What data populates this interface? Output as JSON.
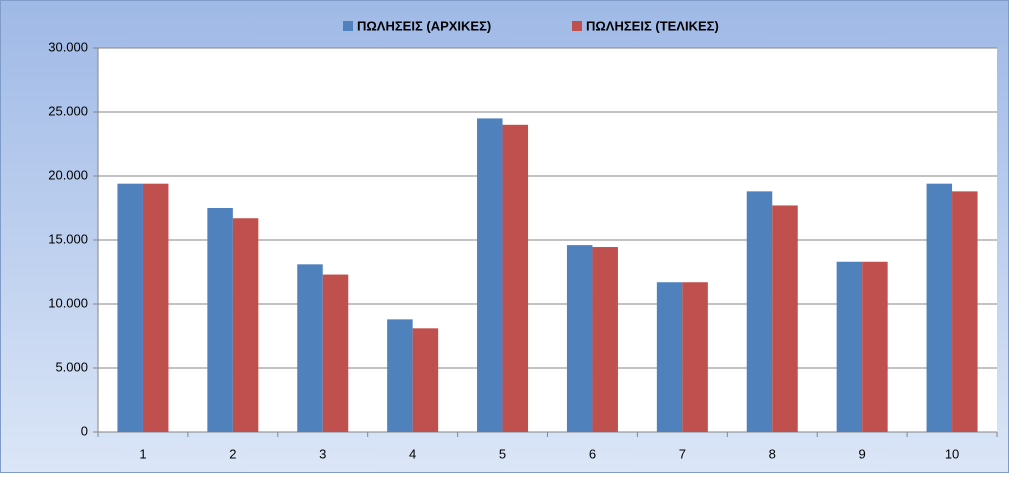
{
  "chart_data": {
    "type": "bar",
    "categories": [
      "1",
      "2",
      "3",
      "4",
      "5",
      "6",
      "7",
      "8",
      "9",
      "10"
    ],
    "series": [
      {
        "name": "ΠΩΛΗΣΕΙΣ (ΑΡΧΙΚΕΣ)",
        "color": "#4f81bd",
        "values": [
          19400,
          17500,
          13100,
          8800,
          24500,
          14600,
          11700,
          18800,
          13300,
          19400
        ]
      },
      {
        "name": "ΠΩΛΗΣΕΙΣ (ΤΕΛΙΚΕΣ)",
        "color": "#c0504d",
        "values": [
          19400,
          16700,
          12300,
          8100,
          24000,
          14450,
          11700,
          17700,
          13300,
          18800
        ]
      }
    ],
    "ylim": [
      0,
      30000
    ],
    "yticks": [
      0,
      {
        "value": 5000,
        "label": "5.000"
      },
      {
        "value": 10000,
        "label": "10.000"
      },
      {
        "value": 15000,
        "label": "15.000"
      },
      {
        "value": 20000,
        "label": "20.000"
      },
      {
        "value": 25000,
        "label": "25.000"
      },
      {
        "value": 30000,
        "label": "30.000"
      }
    ],
    "grid": true,
    "legend": "top"
  }
}
